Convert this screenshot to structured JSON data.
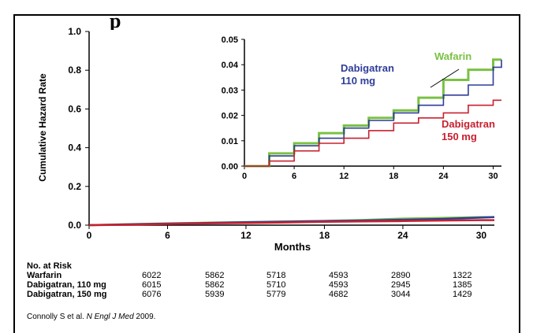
{
  "header": {
    "title_fragment": "p"
  },
  "chart_data": [
    {
      "type": "line",
      "title": "",
      "xlabel": "Months",
      "ylabel": "Cumulative Hazard Rate",
      "xlim": [
        0,
        31
      ],
      "ylim": [
        0,
        1.0
      ],
      "xticks": [
        "0",
        "6",
        "12",
        "18",
        "24",
        "30"
      ],
      "yticks": [
        "0.0",
        "0.2",
        "0.4",
        "0.6",
        "0.8",
        "1.0"
      ],
      "grid": false,
      "series": [
        {
          "name": "Wafarin",
          "color": "#7ac143",
          "x": [
            0,
            3,
            6,
            9,
            12,
            15,
            18,
            21,
            24,
            27,
            30,
            31
          ],
          "y": [
            0,
            0.005,
            0.009,
            0.013,
            0.016,
            0.019,
            0.022,
            0.027,
            0.034,
            0.038,
            0.042,
            0.042
          ]
        },
        {
          "name": "Dabigatran 110 mg",
          "color": "#2e3d98",
          "x": [
            0,
            3,
            6,
            9,
            12,
            15,
            18,
            21,
            24,
            27,
            30,
            31
          ],
          "y": [
            0,
            0.004,
            0.008,
            0.011,
            0.015,
            0.018,
            0.021,
            0.024,
            0.028,
            0.032,
            0.039,
            0.042
          ]
        },
        {
          "name": "Dabigatran 150 mg",
          "color": "#c8202f",
          "x": [
            0,
            3,
            6,
            9,
            12,
            15,
            18,
            21,
            24,
            27,
            30,
            31
          ],
          "y": [
            0,
            0.002,
            0.006,
            0.009,
            0.011,
            0.014,
            0.017,
            0.019,
            0.021,
            0.024,
            0.026,
            0.026
          ]
        }
      ]
    },
    {
      "type": "line",
      "title": "",
      "xlabel": "",
      "ylabel": "",
      "xlim": [
        0,
        31
      ],
      "ylim": [
        0,
        0.05
      ],
      "xticks": [
        "0",
        "6",
        "12",
        "18",
        "24",
        "30"
      ],
      "yticks": [
        "0.00",
        "0.01",
        "0.02",
        "0.03",
        "0.04",
        "0.05"
      ],
      "grid": false,
      "annotations": [
        "Wafarin",
        "Dabigatran",
        "110 mg",
        "Dabigatran",
        "150 mg"
      ]
    }
  ],
  "risk_table": {
    "heading": "No. at Risk",
    "rows": [
      {
        "label": "Warfarin",
        "values": [
          "6022",
          "5862",
          "5718",
          "4593",
          "2890",
          "1322"
        ]
      },
      {
        "label": "Dabigatran, 110 mg",
        "values": [
          "6015",
          "5862",
          "5710",
          "4593",
          "2945",
          "1385"
        ]
      },
      {
        "label": "Dabigatran, 150 mg",
        "values": [
          "6076",
          "5939",
          "5779",
          "4682",
          "3044",
          "1429"
        ]
      }
    ]
  },
  "citation": {
    "authors": "Connolly S et al.",
    "journal": "N Engl J Med",
    "year": "2009."
  }
}
